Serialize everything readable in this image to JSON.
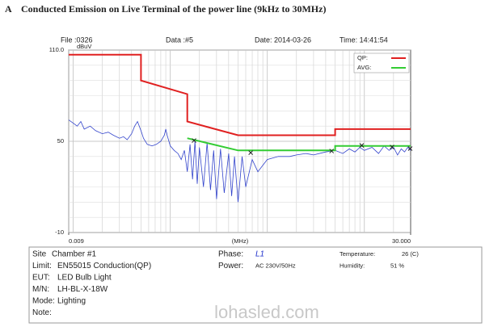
{
  "header": {
    "letter": "A",
    "title": "Conducted Emission on Live Terminal of the power line (9kHz to 30MHz)",
    "meta": [
      "File :0326",
      "Data :#5",
      "Date: 2014-03-26",
      "Time: 14:41:54"
    ]
  },
  "chart_data": {
    "type": "line",
    "x_scale": "log",
    "grid": true,
    "legend": "top-right",
    "y_unit": "dBuV",
    "x_unit": "(MHz)",
    "xlim": [
      0.009,
      30
    ],
    "xticks": [
      0.009,
      {
        "value": 30,
        "label": "30.000"
      }
    ],
    "ylim": [
      -10,
      110
    ],
    "yticks": [
      {
        "value": 110,
        "label": "110.0"
      },
      50,
      -10
    ],
    "series": [
      {
        "name": "QP:",
        "color": "#e02020",
        "x": [
          0.009,
          0.05,
          0.05,
          0.15,
          0.15,
          0.5,
          5,
          5,
          30
        ],
        "values": [
          107,
          107,
          90,
          81,
          63,
          54,
          54,
          58,
          58
        ]
      },
      {
        "name": "AVG:",
        "color": "#33cc33",
        "x": [
          0.15,
          0.5,
          5,
          5,
          30
        ],
        "values": [
          52,
          44,
          44,
          47,
          47
        ]
      }
    ],
    "trace": {
      "color": "#3344cc",
      "x": [
        0.009,
        0.01,
        0.011,
        0.012,
        0.013,
        0.015,
        0.017,
        0.02,
        0.023,
        0.026,
        0.03,
        0.033,
        0.036,
        0.04,
        0.043,
        0.046,
        0.05,
        0.053,
        0.058,
        0.065,
        0.072,
        0.08,
        0.087,
        0.09,
        0.093,
        0.1,
        0.11,
        0.12,
        0.13,
        0.14,
        0.15,
        0.16,
        0.17,
        0.18,
        0.19,
        0.2,
        0.22,
        0.24,
        0.26,
        0.28,
        0.3,
        0.33,
        0.36,
        0.4,
        0.43,
        0.46,
        0.5,
        0.55,
        0.6,
        0.7,
        0.8,
        1,
        1.3,
        1.7,
        2,
        2.5,
        3,
        4,
        5,
        6,
        7,
        8,
        9,
        10,
        12,
        14,
        16,
        18,
        20,
        22,
        24,
        26,
        28,
        30
      ],
      "values": [
        64,
        62,
        60,
        63,
        58,
        60,
        57,
        55,
        56,
        54,
        52,
        53,
        51,
        55,
        60,
        63,
        57,
        52,
        48,
        47,
        48,
        50,
        54,
        58,
        54,
        47,
        44,
        42,
        38,
        44,
        30,
        48,
        25,
        50,
        22,
        46,
        20,
        49,
        18,
        44,
        12,
        45,
        16,
        42,
        14,
        40,
        10,
        40,
        20,
        38,
        30,
        38,
        40,
        40,
        41,
        42,
        41,
        43,
        44,
        42,
        45,
        43,
        46,
        44,
        46,
        42,
        47,
        44,
        46,
        41,
        45,
        43,
        46,
        44
      ]
    },
    "markers": {
      "color": "#222222",
      "x": [
        0.176,
        0.675,
        4.6,
        9.4,
        19.3,
        29.7
      ],
      "values": [
        50.5,
        42.5,
        43.6,
        47.3,
        46.2,
        45.2
      ]
    }
  },
  "info": {
    "left": [
      [
        "Site",
        "Chamber #1"
      ],
      [
        "Limit:",
        "EN55015  Conduction(QP)"
      ],
      [
        "EUT:",
        "LED Bulb Light"
      ],
      [
        "M/N:",
        "LH-BL-X-18W"
      ],
      [
        "Mode:",
        "Lighting"
      ],
      [
        "Note:",
        ""
      ]
    ],
    "phase": [
      "Phase:",
      "L1"
    ],
    "power": [
      "Power:",
      "AC 230V/50Hz"
    ],
    "temperature": [
      "Temperature:",
      "26 (C)"
    ],
    "humidity": [
      "Humidity:",
      "51 %"
    ]
  },
  "watermark": "lohasled.com"
}
